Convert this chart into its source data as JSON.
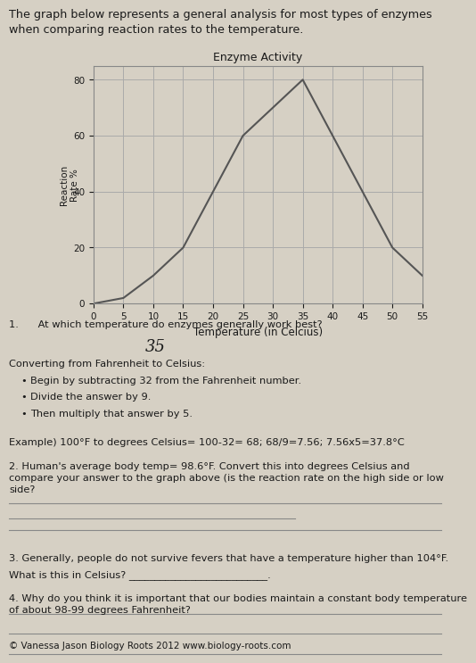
{
  "title_text": "The graph below represents a general analysis for most types of enzymes\nwhen comparing reaction rates to the temperature.",
  "chart_title": "Enzyme Activity",
  "x_label": "Temperature (in Celcius)",
  "y_label": "Reaction\nRate %",
  "x_data": [
    0,
    5,
    10,
    15,
    20,
    25,
    30,
    35,
    40,
    45,
    50,
    55
  ],
  "y_data": [
    0,
    2,
    10,
    20,
    40,
    60,
    70,
    80,
    60,
    40,
    20,
    10
  ],
  "x_ticks": [
    0,
    5,
    10,
    15,
    20,
    25,
    30,
    35,
    40,
    45,
    50,
    55
  ],
  "y_ticks": [
    0,
    20,
    40,
    60,
    80
  ],
  "xlim": [
    0,
    55
  ],
  "ylim": [
    0,
    85
  ],
  "line_color": "#555555",
  "grid_color": "#aaaaaa",
  "bg_color": "#d6d0c4",
  "text_color": "#1a1a1a",
  "q1_text": "1.      At which temperature do enzymes generally work best?",
  "q1_answer": "35",
  "convert_title": "Converting from Fahrenheit to Celsius:",
  "bullet1": "Begin by subtracting 32 from the Fahrenheit number.",
  "bullet2": "Divide the answer by 9.",
  "bullet3": "Then multiply that answer by 5.",
  "example_text": "Example) 100°F to degrees Celsius= 100-32= 68; 68/9=7.56; 7.56x5=37.8°C",
  "q2_text": "2. Human's average body temp= 98.6°F. Convert this into degrees Celsius and\ncompare your answer to the graph above (is the reaction rate on the high side or low\nside?",
  "q3_line1": "3. Generally, people do not survive fevers that have a temperature higher than 104°F.",
  "q3_line2": "What is this in Celsius? ___________________________.",
  "q4_text": "4. Why do you think it is important that our bodies maintain a constant body temperature\nof about 98-99 degrees Fahrenheit?",
  "footer": "© Vanessa Jason Biology Roots 2012 www.biology-roots.com",
  "line_color_draw": "#888888"
}
